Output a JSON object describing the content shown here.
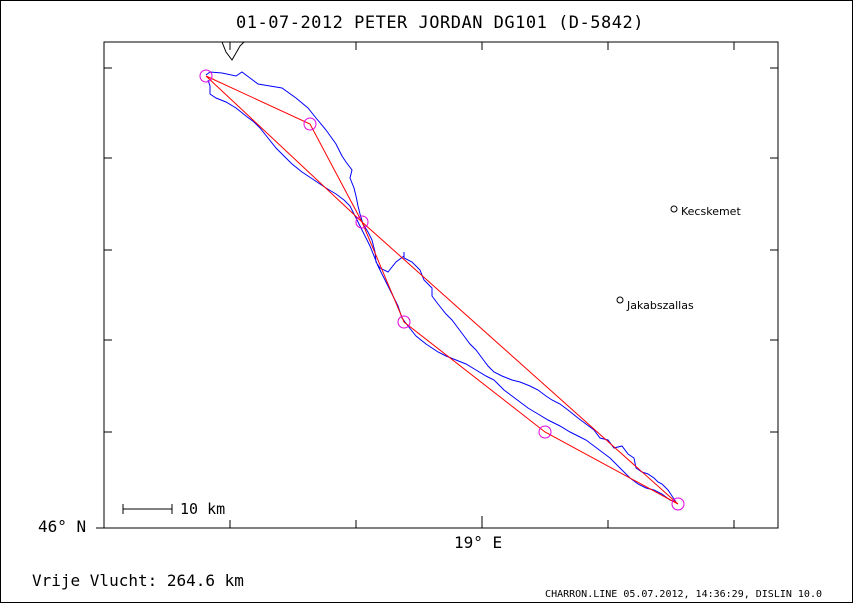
{
  "header": {
    "title": "01-07-2012    PETER JORDAN    DG101 (D-5842)"
  },
  "map": {
    "lat_label": "46° N",
    "lon_label": "19° E",
    "scale_label": "10 km",
    "places": [
      {
        "name": "Kecskemet"
      },
      {
        "name": "Jakabszallas"
      }
    ],
    "colors": {
      "track": "#0000ff",
      "task": "#ff0000",
      "turnpoint": "#e000e0",
      "border": "#000000"
    }
  },
  "footer": {
    "distance_label": "Vrije Vlucht:  264.6 km",
    "credit": "CHARRON.LINE 05.07.2012, 14:36:29, DISLIN 10.0"
  }
}
